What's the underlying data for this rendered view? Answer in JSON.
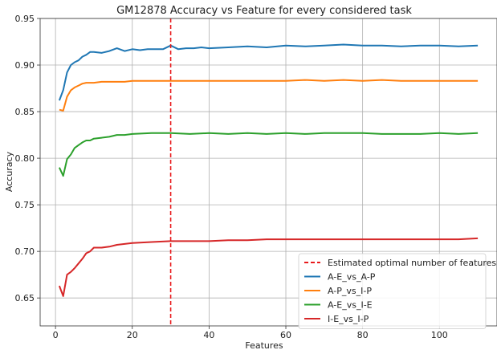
{
  "chart_data": {
    "type": "line",
    "title": "GM12878 Accuracy vs Feature for every considered task",
    "xlabel": "Features",
    "ylabel": "Accuracy",
    "xlim": [
      -4,
      115
    ],
    "ylim": [
      0.62,
      0.95
    ],
    "xticks": [
      0,
      20,
      40,
      60,
      80,
      100
    ],
    "yticks": [
      0.65,
      0.7,
      0.75,
      0.8,
      0.85,
      0.9,
      0.95
    ],
    "xtick_labels": [
      "0",
      "20",
      "40",
      "60",
      "80",
      "100"
    ],
    "ytick_labels": [
      "0.65",
      "0.70",
      "0.75",
      "0.80",
      "0.85",
      "0.90",
      "0.95"
    ],
    "grid": true,
    "legend_position": "lower-right",
    "vline": {
      "x": 30,
      "name": "Estimated optimal number of features",
      "color": "#e8191b",
      "style": "dashed"
    },
    "series": [
      {
        "name": "A-E_vs_A-P",
        "color": "#1f77b4",
        "x": [
          1,
          2,
          3,
          4,
          5,
          6,
          7,
          8,
          9,
          10,
          12,
          14,
          16,
          18,
          20,
          22,
          24,
          26,
          28,
          30,
          32,
          34,
          36,
          38,
          40,
          45,
          50,
          55,
          60,
          65,
          70,
          75,
          80,
          85,
          90,
          95,
          100,
          105,
          110
        ],
        "y": [
          0.862,
          0.873,
          0.892,
          0.9,
          0.903,
          0.905,
          0.909,
          0.911,
          0.914,
          0.914,
          0.913,
          0.915,
          0.918,
          0.915,
          0.917,
          0.916,
          0.917,
          0.917,
          0.917,
          0.921,
          0.917,
          0.918,
          0.918,
          0.919,
          0.918,
          0.919,
          0.92,
          0.919,
          0.921,
          0.92,
          0.921,
          0.922,
          0.921,
          0.921,
          0.92,
          0.921,
          0.921,
          0.92,
          0.921
        ]
      },
      {
        "name": "A-P_vs_I-P",
        "color": "#ff7f0e",
        "x": [
          1,
          2,
          3,
          4,
          5,
          6,
          7,
          8,
          9,
          10,
          12,
          14,
          16,
          18,
          20,
          25,
          30,
          35,
          40,
          45,
          50,
          55,
          60,
          65,
          70,
          75,
          80,
          85,
          90,
          95,
          100,
          105,
          110
        ],
        "y": [
          0.852,
          0.851,
          0.866,
          0.873,
          0.876,
          0.878,
          0.88,
          0.881,
          0.881,
          0.881,
          0.882,
          0.882,
          0.882,
          0.882,
          0.883,
          0.883,
          0.883,
          0.883,
          0.883,
          0.883,
          0.883,
          0.883,
          0.883,
          0.884,
          0.883,
          0.884,
          0.883,
          0.884,
          0.883,
          0.883,
          0.883,
          0.883,
          0.883
        ]
      },
      {
        "name": "A-E_vs_I-E",
        "color": "#2ca02c",
        "x": [
          1,
          2,
          3,
          4,
          5,
          6,
          7,
          8,
          9,
          10,
          12,
          14,
          16,
          18,
          20,
          25,
          30,
          35,
          40,
          45,
          50,
          55,
          60,
          65,
          70,
          75,
          80,
          85,
          90,
          95,
          100,
          105,
          110
        ],
        "y": [
          0.79,
          0.781,
          0.799,
          0.804,
          0.811,
          0.814,
          0.817,
          0.819,
          0.819,
          0.821,
          0.822,
          0.823,
          0.825,
          0.825,
          0.826,
          0.827,
          0.827,
          0.826,
          0.827,
          0.826,
          0.827,
          0.826,
          0.827,
          0.826,
          0.827,
          0.827,
          0.827,
          0.826,
          0.826,
          0.826,
          0.827,
          0.826,
          0.827
        ]
      },
      {
        "name": "I-E_vs_I-P",
        "color": "#d62728",
        "x": [
          1,
          2,
          3,
          4,
          5,
          6,
          7,
          8,
          9,
          10,
          12,
          14,
          16,
          18,
          20,
          25,
          30,
          35,
          40,
          45,
          50,
          55,
          60,
          65,
          70,
          75,
          80,
          85,
          90,
          95,
          100,
          105,
          110
        ],
        "y": [
          0.663,
          0.652,
          0.675,
          0.678,
          0.682,
          0.687,
          0.692,
          0.698,
          0.7,
          0.704,
          0.704,
          0.705,
          0.707,
          0.708,
          0.709,
          0.71,
          0.711,
          0.711,
          0.711,
          0.712,
          0.712,
          0.713,
          0.713,
          0.713,
          0.713,
          0.713,
          0.713,
          0.713,
          0.713,
          0.713,
          0.713,
          0.713,
          0.714
        ]
      }
    ]
  }
}
